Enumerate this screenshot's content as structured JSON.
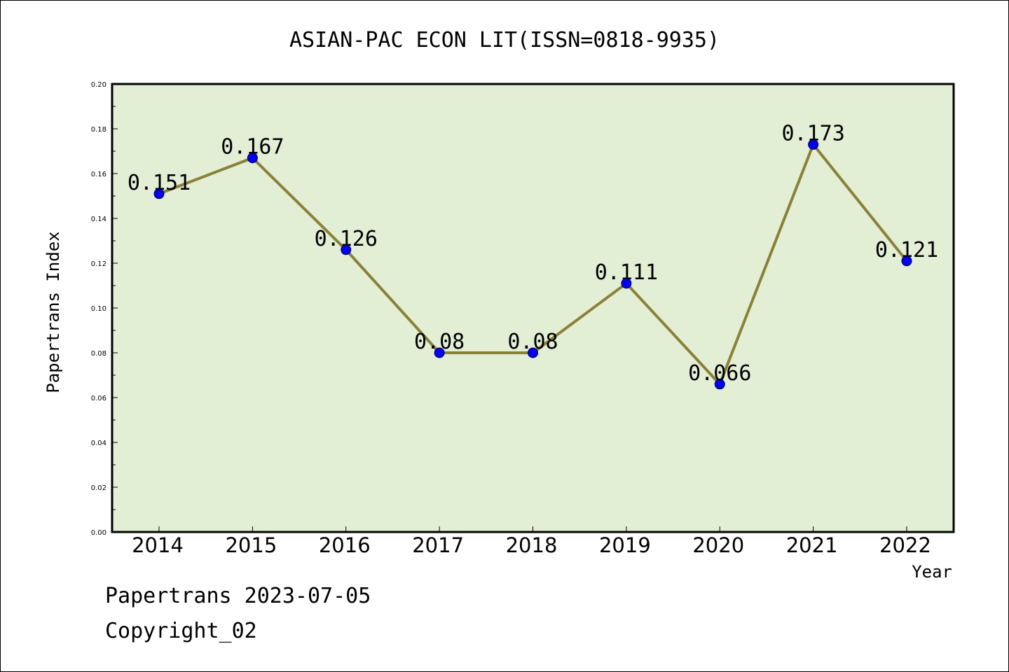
{
  "chart_data": {
    "type": "line",
    "title": "ASIAN-PAC ECON LIT(ISSN=0818-9935)",
    "xlabel": "Year",
    "ylabel": "Papertrans Index",
    "categories": [
      "2014",
      "2015",
      "2016",
      "2017",
      "2018",
      "2019",
      "2020",
      "2021",
      "2022"
    ],
    "values": [
      0.151,
      0.167,
      0.126,
      0.08,
      0.08,
      0.111,
      0.066,
      0.173,
      0.121
    ],
    "data_labels": [
      "0.151",
      "0.167",
      "0.126",
      "0.08",
      "0.08",
      "0.111",
      "0.066",
      "0.173",
      "0.121"
    ],
    "ylim": [
      0,
      0.2
    ],
    "yticks": [
      "0.00",
      "0.02",
      "0.04",
      "0.06",
      "0.08",
      "0.10",
      "0.12",
      "0.14",
      "0.16",
      "0.18",
      "0.20"
    ],
    "grid": false,
    "legend": "none",
    "colors": {
      "plot_background": "#e2efd5",
      "line": "#8b8136",
      "marker": "#0000ff"
    }
  },
  "footer": {
    "line1": "Papertrans 2023-07-05",
    "line2": "Copyright_02"
  }
}
